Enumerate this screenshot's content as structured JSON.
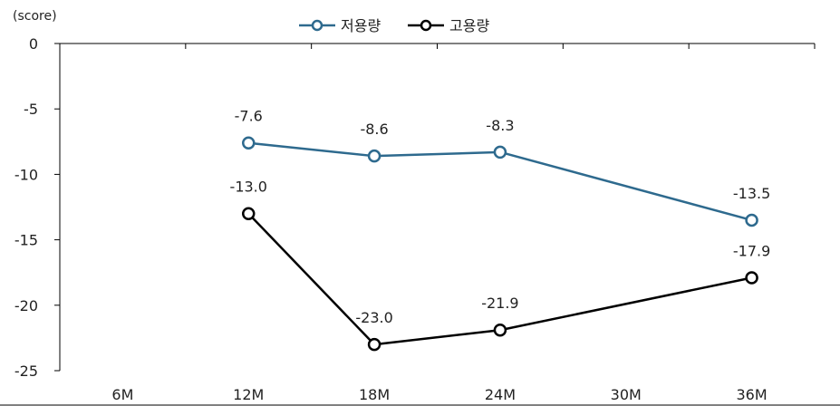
{
  "chart_data": {
    "type": "line",
    "ylabel": "(score)",
    "categories": [
      "6M",
      "12M",
      "18M",
      "24M",
      "30M",
      "36M"
    ],
    "ylim": [
      -25,
      0
    ],
    "yticks": [
      0,
      -5,
      -10,
      -15,
      -20,
      -25
    ],
    "grid": false,
    "legend_position": "top-center",
    "series": [
      {
        "name": "저용량",
        "color": "#2e6a8e",
        "marker": "circle-open",
        "values": [
          null,
          -7.6,
          -8.6,
          -8.3,
          null,
          -13.5
        ],
        "labels": [
          null,
          "-7.6",
          "-8.6",
          "-8.3",
          null,
          "-13.5"
        ]
      },
      {
        "name": "고용량",
        "color": "#000000",
        "marker": "circle-open",
        "values": [
          null,
          -13.0,
          -23.0,
          -21.9,
          null,
          -17.9
        ],
        "labels": [
          null,
          "-13.0",
          "-23.0",
          "-21.9",
          null,
          "-17.9"
        ]
      }
    ]
  }
}
